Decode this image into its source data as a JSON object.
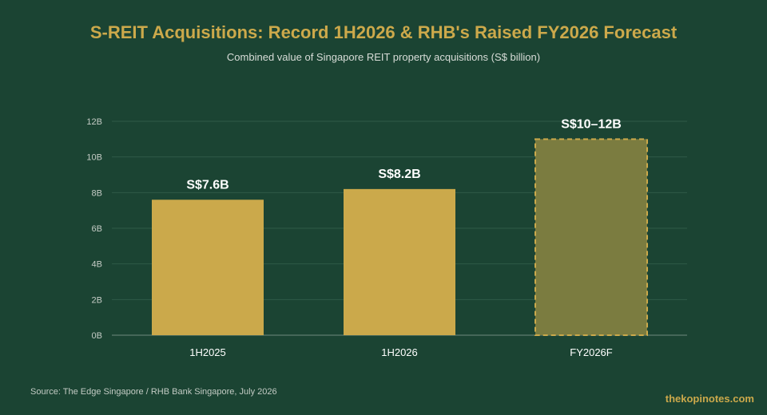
{
  "title": "S-REIT Acquisitions: Record 1H2026 & RHB's Raised FY2026 Forecast",
  "subtitle": "Combined value of Singapore REIT property acquisitions (S$ billion)",
  "source": "Source: The Edge Singapore / RHB Bank Singapore, July 2026",
  "brand": "thekopinotes.com",
  "colors": {
    "background": "#1b4433",
    "bar": "#cba94b",
    "forecast_bar": "#7b7c40",
    "forecast_border": "#cba94b",
    "title": "#cca94b"
  },
  "chart_data": {
    "type": "bar",
    "categories": [
      "1H2025",
      "1H2026",
      "FY2026F"
    ],
    "values": [
      7.6,
      8.2,
      11
    ],
    "forecast_range": [
      10,
      12
    ],
    "data_labels": [
      "S$7.6B",
      "S$8.2B",
      "S$10–12B"
    ],
    "forecast": [
      false,
      false,
      true
    ],
    "ylim": [
      0,
      12
    ],
    "yticks": [
      0,
      2,
      4,
      6,
      8,
      10,
      12
    ],
    "ytick_labels": [
      "0B",
      "2B",
      "4B",
      "6B",
      "8B",
      "10B",
      "12B"
    ],
    "grid": true
  }
}
